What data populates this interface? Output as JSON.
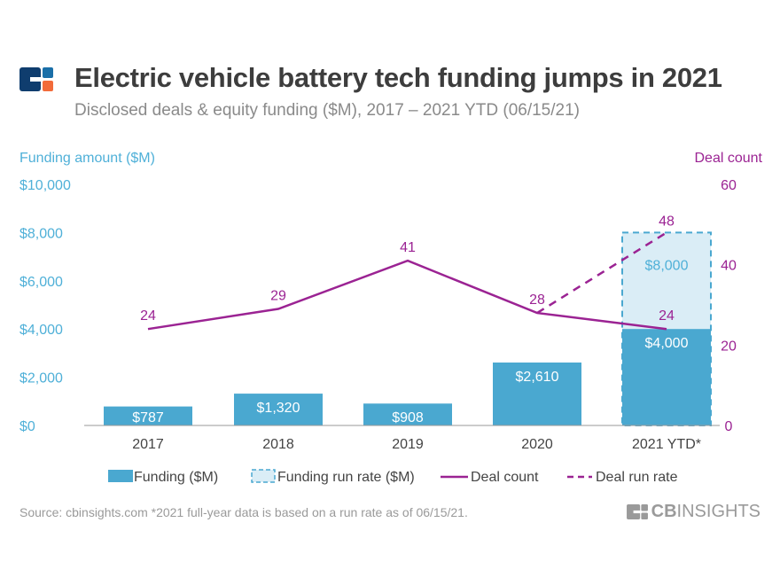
{
  "header": {
    "title": "Electric vehicle battery tech funding jumps in 2021",
    "subtitle": "Disclosed deals & equity funding ($M), 2017 – 2021 YTD (06/15/21)"
  },
  "footer": {
    "source": "Source: cbinsights.com  *2021 full-year data is based on a run rate as of 06/15/21.",
    "brand": "CBINSIGHTS",
    "brand_bold": "CB",
    "brand_rest": "INSIGHTS"
  },
  "colors": {
    "bar": "#4aa8d0",
    "runrate_fill": "#daedf6",
    "line": "#9b2393",
    "left_axis": "#4fb0d8",
    "text": "#444444"
  },
  "chart_data": {
    "type": "bar+line",
    "categories": [
      "2017",
      "2018",
      "2019",
      "2020",
      "2021 YTD*"
    ],
    "left_axis": {
      "title": "Funding amount ($M)",
      "range": [
        0,
        10000
      ],
      "ticks": [
        0,
        2000,
        4000,
        6000,
        8000,
        10000
      ],
      "tick_labels": [
        "$0",
        "$2,000",
        "$4,000",
        "$6,000",
        "$8,000",
        "$10,000"
      ]
    },
    "right_axis": {
      "title": "Deal count",
      "range": [
        0,
        60
      ],
      "ticks": [
        0,
        20,
        40,
        60
      ],
      "tick_labels": [
        "0",
        "20",
        "40",
        "60"
      ]
    },
    "series": [
      {
        "name": "Funding ($M)",
        "type": "bar",
        "values": [
          787,
          1320,
          908,
          2610,
          4000
        ],
        "labels": [
          "$787",
          "$1,320",
          "$908",
          "$2,610",
          "$4,000"
        ]
      },
      {
        "name": "Funding run rate ($M)",
        "type": "bar-dashed",
        "values": [
          null,
          null,
          null,
          null,
          8000
        ],
        "labels": [
          "",
          "",
          "",
          "",
          "$8,000"
        ]
      },
      {
        "name": "Deal count",
        "type": "line",
        "values": [
          24,
          29,
          41,
          28,
          24
        ]
      },
      {
        "name": "Deal run rate",
        "type": "line-dashed",
        "values": [
          null,
          null,
          null,
          28,
          48
        ]
      }
    ],
    "legend": {
      "position": "bottom",
      "items": [
        "Funding ($M)",
        "Funding run rate ($M)",
        "Deal count",
        "Deal run rate"
      ]
    }
  }
}
